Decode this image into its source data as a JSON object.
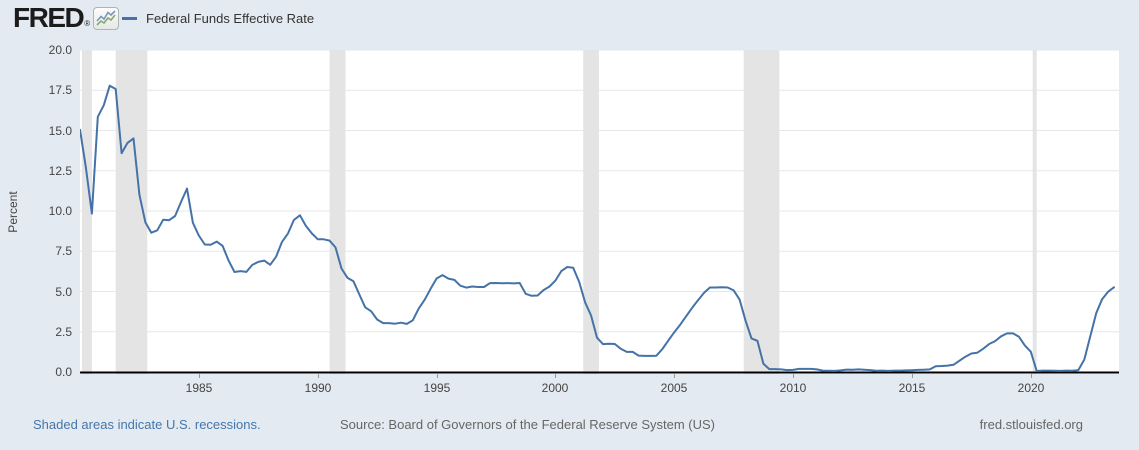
{
  "header": {
    "logo_text": "FRED",
    "registered_mark": "®",
    "legend": {
      "series_label": "Federal Funds Effective Rate"
    }
  },
  "footer": {
    "recession_note": "Shaded areas indicate U.S. recessions.",
    "source": "Source: Board of Governors of the Federal Reserve System (US)",
    "site_url": "fred.stlouisfed.org"
  },
  "chart_data": {
    "type": "line",
    "series_name": "Federal Funds Effective Rate",
    "ylabel": "Percent",
    "frequency": "quarterly",
    "x_start_year": 1980,
    "x_end_year": 2023.5,
    "ylim": [
      0,
      20
    ],
    "grid": "horizontal",
    "legend_position": "top-left",
    "y_ticks": [
      20,
      17.5,
      15,
      12.5,
      10,
      7.5,
      5,
      2.5,
      0
    ],
    "y_tick_labels": [
      "20.0",
      "17.5",
      "15.0",
      "12.5",
      "10.0",
      "7.5",
      "5.0",
      "2.5",
      "0.0"
    ],
    "x_ticks": [
      1985,
      1990,
      1995,
      2000,
      2005,
      2010,
      2015,
      2020
    ],
    "x_tick_labels": [
      "1985",
      "1990",
      "1995",
      "2000",
      "2005",
      "2010",
      "2015",
      "2020"
    ],
    "values": [
      15.05,
      12.69,
      9.84,
      15.85,
      16.57,
      17.78,
      17.58,
      13.59,
      14.23,
      14.51,
      11.01,
      9.29,
      8.65,
      8.8,
      9.46,
      9.43,
      9.69,
      10.56,
      11.39,
      9.27,
      8.48,
      7.92,
      7.9,
      8.1,
      7.83,
      6.92,
      6.21,
      6.27,
      6.22,
      6.65,
      6.84,
      6.92,
      6.66,
      7.16,
      8.08,
      8.61,
      9.44,
      9.73,
      9.08,
      8.61,
      8.25,
      8.24,
      8.16,
      7.74,
      6.43,
      5.86,
      5.64,
      4.82,
      4.02,
      3.77,
      3.26,
      3.04,
      3.04,
      3.0,
      3.06,
      2.99,
      3.21,
      3.94,
      4.49,
      5.17,
      5.81,
      6.02,
      5.8,
      5.72,
      5.36,
      5.24,
      5.31,
      5.28,
      5.28,
      5.52,
      5.53,
      5.51,
      5.52,
      5.5,
      5.53,
      4.86,
      4.73,
      4.75,
      5.09,
      5.31,
      5.68,
      6.27,
      6.52,
      6.47,
      5.59,
      4.33,
      3.5,
      2.13,
      1.73,
      1.75,
      1.74,
      1.44,
      1.25,
      1.25,
      1.02,
      1.0,
      1.0,
      1.01,
      1.43,
      1.95,
      2.47,
      2.94,
      3.46,
      3.98,
      4.46,
      4.91,
      5.25,
      5.25,
      5.26,
      5.25,
      5.07,
      4.5,
      3.18,
      2.09,
      1.94,
      0.51,
      0.18,
      0.18,
      0.16,
      0.12,
      0.13,
      0.19,
      0.19,
      0.19,
      0.16,
      0.09,
      0.08,
      0.07,
      0.1,
      0.15,
      0.14,
      0.16,
      0.14,
      0.12,
      0.08,
      0.09,
      0.07,
      0.09,
      0.09,
      0.1,
      0.11,
      0.13,
      0.14,
      0.16,
      0.36,
      0.37,
      0.4,
      0.45,
      0.7,
      0.95,
      1.15,
      1.2,
      1.45,
      1.74,
      1.92,
      2.22,
      2.4,
      2.4,
      2.19,
      1.64,
      1.26,
      0.06,
      0.09,
      0.09,
      0.08,
      0.07,
      0.09,
      0.08,
      0.12,
      0.77,
      2.2,
      3.65,
      4.52,
      4.99,
      5.26
    ],
    "recessions": [
      [
        1980.08,
        1980.5
      ],
      [
        1981.5,
        1982.83
      ],
      [
        1990.5,
        1991.17
      ],
      [
        2001.17,
        2001.83
      ],
      [
        2007.92,
        2009.42
      ],
      [
        2020.08,
        2020.25
      ]
    ],
    "colors": {
      "line": "#4572a7",
      "recession_band": "#e4e4e4",
      "grid": "#e7e7e7",
      "plot_bg": "#ffffff",
      "page_bg": "#e4eaf1",
      "axis": "#000000",
      "tick_text": "#444444",
      "link": "#4577a9",
      "footer_text": "#666666"
    }
  }
}
